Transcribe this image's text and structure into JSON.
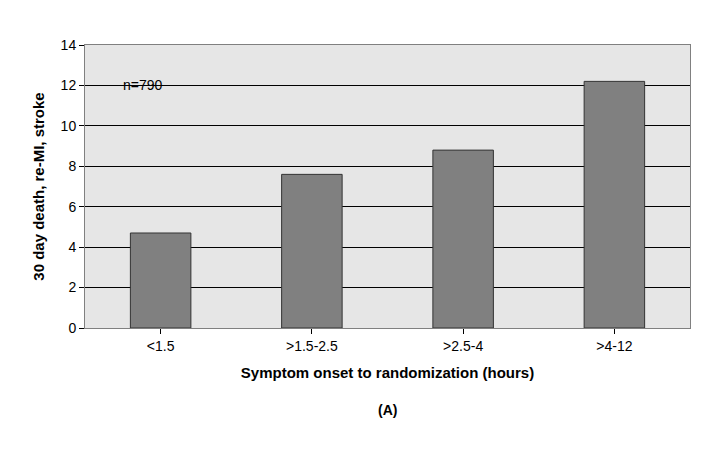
{
  "chart_data": {
    "type": "bar",
    "x_label": "Symptom onset to randomization (hours)",
    "y_label": "30 day death, re-MI, stroke",
    "categories": [
      "<1.5",
      ">1.5-2.5",
      ">2.5-4",
      ">4-12"
    ],
    "values": [
      4.7,
      7.6,
      8.8,
      12.2
    ],
    "color": "#808080",
    "ylim": [
      0,
      14
    ],
    "yticks": [
      0,
      2,
      4,
      6,
      8,
      10,
      12,
      14
    ],
    "grid": true,
    "annotations": [
      "n=790",
      "(A)"
    ]
  }
}
